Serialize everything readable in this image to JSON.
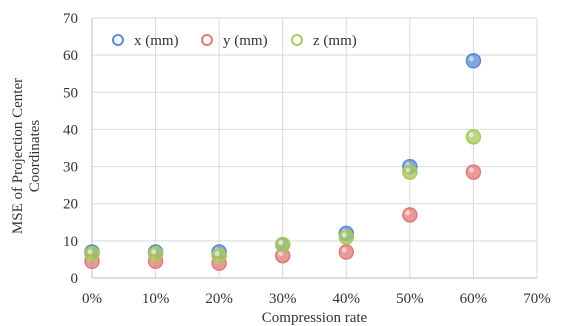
{
  "chart_data": {
    "type": "scatter",
    "xlabel": "Compression rate",
    "ylabel": "MSE of Projection Center Coordinates",
    "xlim": [
      0,
      0.7
    ],
    "ylim": [
      0,
      70
    ],
    "x_ticks": [
      "0%",
      "10%",
      "20%",
      "30%",
      "40%",
      "50%",
      "60%",
      "70%"
    ],
    "y_ticks": [
      "0",
      "10",
      "20",
      "30",
      "40",
      "50",
      "60",
      "70"
    ],
    "grid": true,
    "legend_position": "top-left",
    "series": [
      {
        "name": "x (mm)",
        "color": "#5b8bd0",
        "x": [
          0.0,
          0.1,
          0.2,
          0.3,
          0.4,
          0.5,
          0.6
        ],
        "y": [
          7,
          7,
          7,
          9,
          12,
          30,
          58.5
        ]
      },
      {
        "name": "y (mm)",
        "color": "#e07a7a",
        "x": [
          0.0,
          0.1,
          0.2,
          0.3,
          0.4,
          0.5,
          0.6
        ],
        "y": [
          4.5,
          4.5,
          4,
          6,
          7,
          17,
          28.5
        ]
      },
      {
        "name": "z (mm)",
        "color": "#a8c85a",
        "x": [
          0.0,
          0.1,
          0.2,
          0.3,
          0.4,
          0.5,
          0.6
        ],
        "y": [
          6.5,
          6.5,
          6,
          9,
          11,
          28.5,
          38
        ]
      }
    ]
  }
}
